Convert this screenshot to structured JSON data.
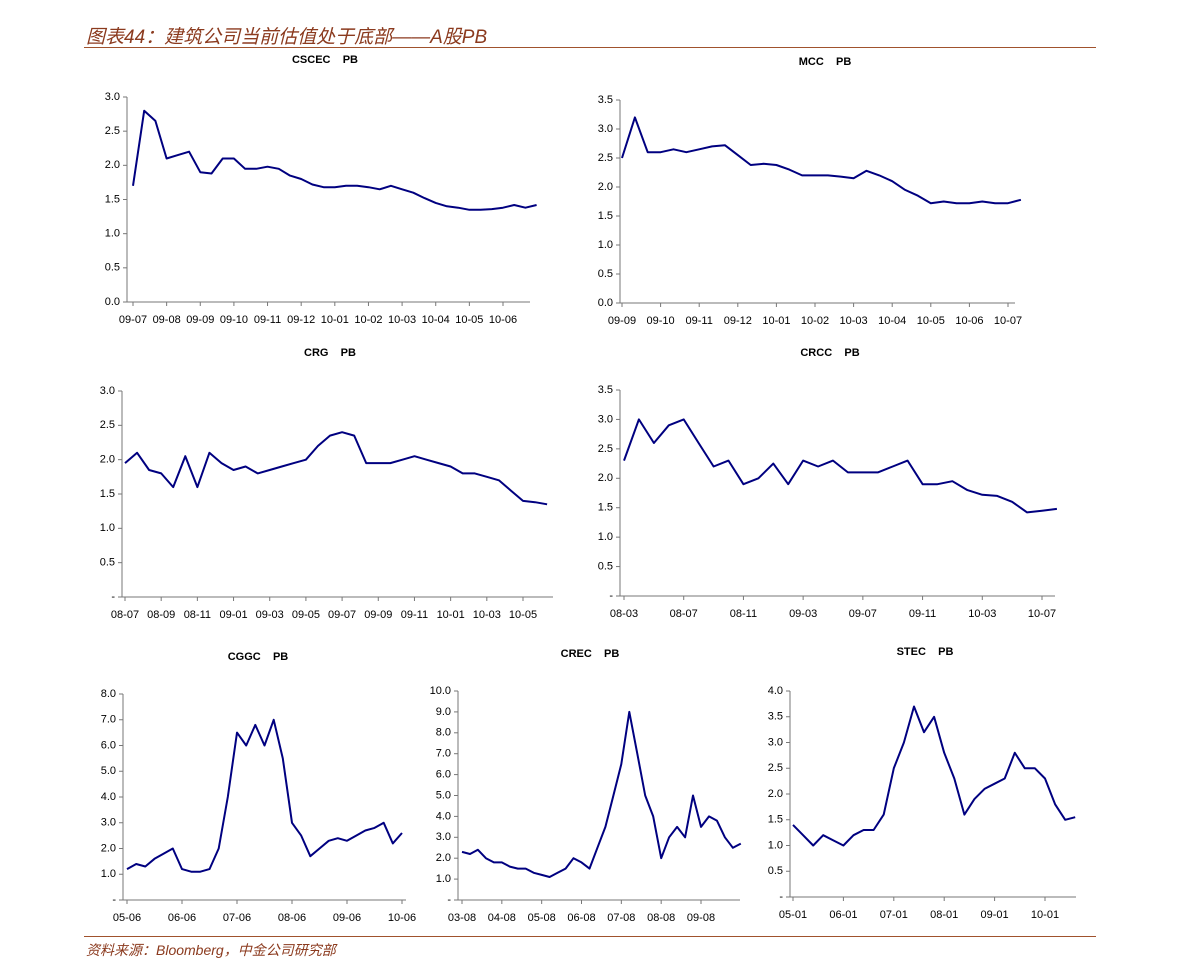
{
  "header": {
    "title": "图表44：建筑公司当前估值处于底部——A股PB"
  },
  "footer": {
    "source": "资料来源：Bloomberg，中金公司研究部"
  },
  "chart_data": [
    {
      "type": "line",
      "title": "CSCEC    PB",
      "color": "#000080",
      "ylim": [
        0,
        3
      ],
      "yticks": [
        {
          "value": 0,
          "label": "0.0"
        },
        {
          "value": 0.5,
          "label": "0.5"
        },
        {
          "value": 1,
          "label": "1.0"
        },
        {
          "value": 1.5,
          "label": "1.5"
        },
        {
          "value": 2,
          "label": "2.0"
        },
        {
          "value": 2.5,
          "label": "2.5"
        },
        {
          "value": 3,
          "label": "3.0"
        }
      ],
      "categories": [
        "09-07",
        null,
        null,
        "09-08",
        null,
        null,
        "09-09",
        null,
        null,
        "09-10",
        null,
        null,
        "09-11",
        null,
        null,
        "09-12",
        null,
        null,
        "10-01",
        null,
        null,
        "10-02",
        null,
        null,
        "10-03",
        null,
        null,
        "10-04",
        null,
        null,
        "10-05",
        null,
        null,
        "10-06",
        null,
        null,
        null
      ],
      "values": [
        1.7,
        2.8,
        2.65,
        2.1,
        2.15,
        2.2,
        1.9,
        1.88,
        2.1,
        2.1,
        1.95,
        1.95,
        1.98,
        1.95,
        1.85,
        1.8,
        1.72,
        1.68,
        1.68,
        1.7,
        1.7,
        1.68,
        1.65,
        1.7,
        1.65,
        1.6,
        1.52,
        1.45,
        1.4,
        1.38,
        1.35,
        1.35,
        1.36,
        1.38,
        1.42,
        1.38,
        1.42
      ]
    },
    {
      "type": "line",
      "title": "MCC    PB",
      "color": "#000080",
      "ylim": [
        0,
        3.5
      ],
      "yticks": [
        {
          "value": 0,
          "label": "0.0"
        },
        {
          "value": 0.5,
          "label": "0.5"
        },
        {
          "value": 1,
          "label": "1.0"
        },
        {
          "value": 1.5,
          "label": "1.5"
        },
        {
          "value": 2,
          "label": "2.0"
        },
        {
          "value": 2.5,
          "label": "2.5"
        },
        {
          "value": 3,
          "label": "3.0"
        },
        {
          "value": 3.5,
          "label": "3.5"
        }
      ],
      "categories": [
        "09-09",
        null,
        null,
        "09-10",
        null,
        null,
        "09-11",
        null,
        null,
        "09-12",
        null,
        null,
        "10-01",
        null,
        null,
        "10-02",
        null,
        null,
        "10-03",
        null,
        null,
        "10-04",
        null,
        null,
        "10-05",
        null,
        null,
        "10-06",
        null,
        null,
        "10-07",
        null
      ],
      "values": [
        2.5,
        3.2,
        2.6,
        2.6,
        2.65,
        2.6,
        2.65,
        2.7,
        2.72,
        2.55,
        2.38,
        2.4,
        2.38,
        2.3,
        2.2,
        2.2,
        2.2,
        2.18,
        2.15,
        2.28,
        2.2,
        2.1,
        1.95,
        1.85,
        1.72,
        1.75,
        1.72,
        1.72,
        1.75,
        1.72,
        1.72,
        1.78
      ]
    },
    {
      "type": "line",
      "title": "CRG    PB",
      "color": "#000080",
      "ylim": [
        0,
        3
      ],
      "yticks": [
        {
          "value": 0,
          "label": "-"
        },
        {
          "value": 0.5,
          "label": "0.5"
        },
        {
          "value": 1,
          "label": "1.0"
        },
        {
          "value": 1.5,
          "label": "1.5"
        },
        {
          "value": 2,
          "label": "2.0"
        },
        {
          "value": 2.5,
          "label": "2.5"
        },
        {
          "value": 3,
          "label": "3.0"
        }
      ],
      "categories": [
        "08-07",
        null,
        null,
        "08-09",
        null,
        null,
        "08-11",
        null,
        null,
        "09-01",
        null,
        null,
        "09-03",
        null,
        null,
        "09-05",
        null,
        null,
        "09-07",
        null,
        null,
        "09-09",
        null,
        null,
        "09-11",
        null,
        null,
        "10-01",
        null,
        null,
        "10-03",
        null,
        null,
        "10-05",
        null,
        null
      ],
      "values": [
        1.95,
        2.1,
        1.85,
        1.8,
        1.6,
        2.05,
        1.6,
        2.1,
        1.95,
        1.85,
        1.9,
        1.8,
        1.85,
        1.9,
        1.95,
        2.0,
        2.2,
        2.35,
        2.4,
        2.35,
        1.95,
        1.95,
        1.95,
        2.0,
        2.05,
        2.0,
        1.95,
        1.9,
        1.8,
        1.8,
        1.75,
        1.7,
        1.55,
        1.4,
        1.38,
        1.35
      ]
    },
    {
      "type": "line",
      "title": "CRCC    PB",
      "color": "#000080",
      "ylim": [
        0,
        3.5
      ],
      "yticks": [
        {
          "value": 0,
          "label": "-"
        },
        {
          "value": 0.5,
          "label": "0.5"
        },
        {
          "value": 1,
          "label": "1.0"
        },
        {
          "value": 1.5,
          "label": "1.5"
        },
        {
          "value": 2,
          "label": "2.0"
        },
        {
          "value": 2.5,
          "label": "2.5"
        },
        {
          "value": 3,
          "label": "3.0"
        },
        {
          "value": 3.5,
          "label": "3.5"
        }
      ],
      "categories": [
        "08-03",
        null,
        null,
        null,
        "08-07",
        null,
        null,
        null,
        "08-11",
        null,
        null,
        null,
        "09-03",
        null,
        null,
        null,
        "09-07",
        null,
        null,
        null,
        "09-11",
        null,
        null,
        null,
        "10-03",
        null,
        null,
        null,
        "10-07",
        null
      ],
      "values": [
        2.3,
        3.0,
        2.6,
        2.9,
        3.0,
        2.6,
        2.2,
        2.3,
        1.9,
        2.0,
        2.25,
        1.9,
        2.3,
        2.2,
        2.3,
        2.1,
        2.1,
        2.1,
        2.2,
        2.3,
        1.9,
        1.9,
        1.95,
        1.8,
        1.72,
        1.7,
        1.6,
        1.42,
        1.45,
        1.48
      ]
    },
    {
      "type": "line",
      "title": "CGGC    PB",
      "color": "#000080",
      "ylim": [
        0,
        8
      ],
      "yticks": [
        {
          "value": 0,
          "label": "-"
        },
        {
          "value": 1,
          "label": "1.0"
        },
        {
          "value": 2,
          "label": "2.0"
        },
        {
          "value": 3,
          "label": "3.0"
        },
        {
          "value": 4,
          "label": "4.0"
        },
        {
          "value": 5,
          "label": "5.0"
        },
        {
          "value": 6,
          "label": "6.0"
        },
        {
          "value": 7,
          "label": "7.0"
        },
        {
          "value": 8,
          "label": "8.0"
        }
      ],
      "categories": [
        "05-06",
        null,
        null,
        null,
        null,
        null,
        "06-06",
        null,
        null,
        null,
        null,
        null,
        "07-06",
        null,
        null,
        null,
        null,
        null,
        "08-06",
        null,
        null,
        null,
        null,
        null,
        "09-06",
        null,
        null,
        null,
        null,
        null,
        "10-06"
      ],
      "values": [
        1.2,
        1.4,
        1.3,
        1.6,
        1.8,
        2.0,
        1.2,
        1.1,
        1.1,
        1.2,
        2.0,
        4.0,
        6.5,
        6.0,
        6.8,
        6.0,
        7.0,
        5.5,
        3.0,
        2.5,
        1.7,
        2.0,
        2.3,
        2.4,
        2.3,
        2.5,
        2.7,
        2.8,
        3.0,
        2.2,
        2.6
      ]
    },
    {
      "type": "line",
      "title": "CREC    PB",
      "color": "#000080",
      "ylim": [
        0,
        10
      ],
      "yticks": [
        {
          "value": 0,
          "label": "-"
        },
        {
          "value": 1,
          "label": "1.0"
        },
        {
          "value": 2,
          "label": "2.0"
        },
        {
          "value": 3,
          "label": "3.0"
        },
        {
          "value": 4,
          "label": "4.0"
        },
        {
          "value": 5,
          "label": "5.0"
        },
        {
          "value": 6,
          "label": "6.0"
        },
        {
          "value": 7,
          "label": "7.0"
        },
        {
          "value": 8,
          "label": "8.0"
        },
        {
          "value": 9,
          "label": "9.0"
        },
        {
          "value": 10,
          "label": "10.0"
        }
      ],
      "categories": [
        "03-08",
        null,
        null,
        null,
        null,
        "04-08",
        null,
        null,
        null,
        null,
        "05-08",
        null,
        null,
        null,
        null,
        "06-08",
        null,
        null,
        null,
        null,
        "07-08",
        null,
        null,
        null,
        null,
        "08-08",
        null,
        null,
        null,
        null,
        "09-08",
        null,
        null,
        null,
        null,
        null
      ],
      "values": [
        2.3,
        2.2,
        2.4,
        2.0,
        1.8,
        1.8,
        1.6,
        1.5,
        1.5,
        1.3,
        1.2,
        1.1,
        1.3,
        1.5,
        2.0,
        1.8,
        1.5,
        2.5,
        3.5,
        5.0,
        6.5,
        9.0,
        7.0,
        5.0,
        4.0,
        2.0,
        3.0,
        3.5,
        3.0,
        5.0,
        3.5,
        4.0,
        3.8,
        3.0,
        2.5,
        2.7
      ]
    },
    {
      "type": "line",
      "title": "STEC    PB",
      "color": "#000080",
      "ylim": [
        0,
        4
      ],
      "yticks": [
        {
          "value": 0,
          "label": "-"
        },
        {
          "value": 0.5,
          "label": "0.5"
        },
        {
          "value": 1,
          "label": "1.0"
        },
        {
          "value": 1.5,
          "label": "1.5"
        },
        {
          "value": 2,
          "label": "2.0"
        },
        {
          "value": 2.5,
          "label": "2.5"
        },
        {
          "value": 3,
          "label": "3.0"
        },
        {
          "value": 3.5,
          "label": "3.5"
        },
        {
          "value": 4,
          "label": "4.0"
        }
      ],
      "categories": [
        "05-01",
        null,
        null,
        null,
        null,
        "06-01",
        null,
        null,
        null,
        null,
        "07-01",
        null,
        null,
        null,
        null,
        "08-01",
        null,
        null,
        null,
        null,
        "09-01",
        null,
        null,
        null,
        null,
        "10-01",
        null,
        null,
        null
      ],
      "values": [
        1.4,
        1.2,
        1.0,
        1.2,
        1.1,
        1.0,
        1.2,
        1.3,
        1.3,
        1.6,
        2.5,
        3.0,
        3.7,
        3.2,
        3.5,
        2.8,
        2.3,
        1.6,
        1.9,
        2.1,
        2.2,
        2.3,
        2.8,
        2.5,
        2.5,
        2.3,
        1.8,
        1.5,
        1.55
      ]
    }
  ]
}
